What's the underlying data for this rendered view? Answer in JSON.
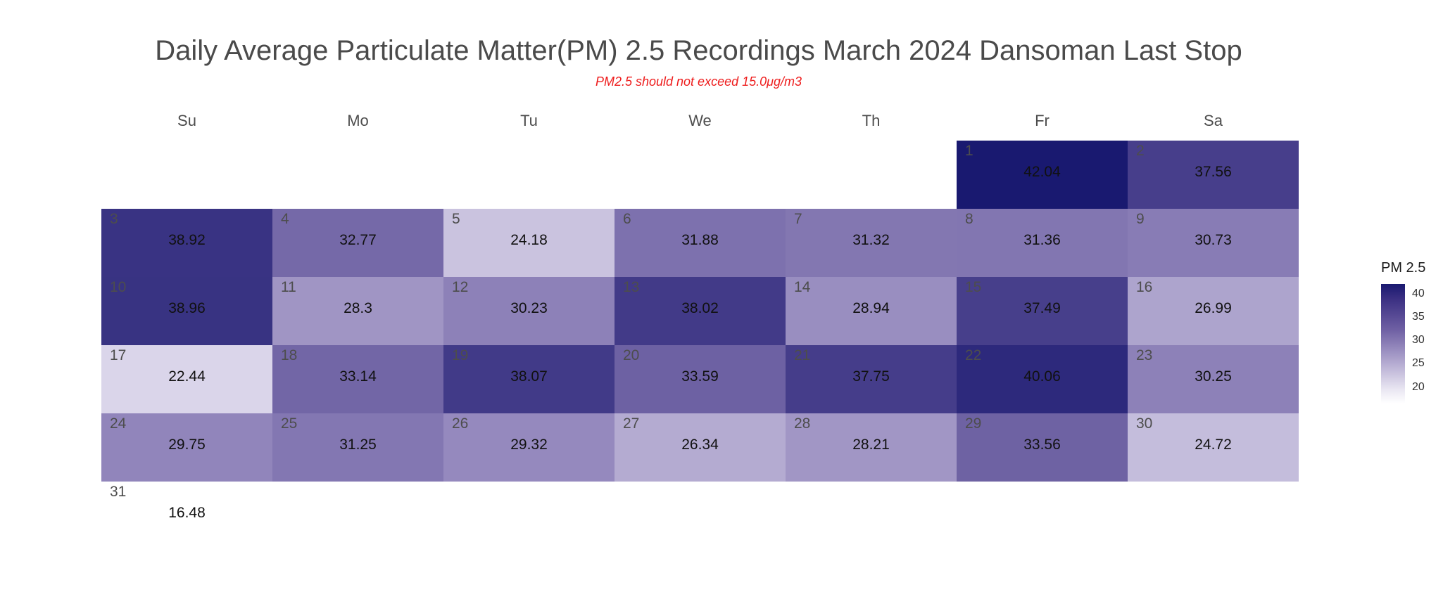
{
  "chart_data": {
    "type": "heatmap",
    "title": "Daily Average Particulate Matter(PM) 2.5 Recordings March 2024 Dansoman Last Stop",
    "subtitle": "PM2.5 should not exceed 15.0μg/m3",
    "weekdays": [
      "Su",
      "Mo",
      "Tu",
      "We",
      "Th",
      "Fr",
      "Sa"
    ],
    "first_weekday_index": 5,
    "days": [
      {
        "day": 1,
        "value": 42.04
      },
      {
        "day": 2,
        "value": 37.56
      },
      {
        "day": 3,
        "value": 38.92
      },
      {
        "day": 4,
        "value": 32.77
      },
      {
        "day": 5,
        "value": 24.18
      },
      {
        "day": 6,
        "value": 31.88
      },
      {
        "day": 7,
        "value": 31.32
      },
      {
        "day": 8,
        "value": 31.36
      },
      {
        "day": 9,
        "value": 30.73
      },
      {
        "day": 10,
        "value": 38.96
      },
      {
        "day": 11,
        "value": 28.3
      },
      {
        "day": 12,
        "value": 30.23
      },
      {
        "day": 13,
        "value": 38.02
      },
      {
        "day": 14,
        "value": 28.94
      },
      {
        "day": 15,
        "value": 37.49
      },
      {
        "day": 16,
        "value": 26.99
      },
      {
        "day": 17,
        "value": 22.44
      },
      {
        "day": 18,
        "value": 33.14
      },
      {
        "day": 19,
        "value": 38.07
      },
      {
        "day": 20,
        "value": 33.59
      },
      {
        "day": 21,
        "value": 37.75
      },
      {
        "day": 22,
        "value": 40.06
      },
      {
        "day": 23,
        "value": 30.25
      },
      {
        "day": 24,
        "value": 29.75
      },
      {
        "day": 25,
        "value": 31.25
      },
      {
        "day": 26,
        "value": 29.32
      },
      {
        "day": 27,
        "value": 26.34
      },
      {
        "day": 28,
        "value": 28.21
      },
      {
        "day": 29,
        "value": 33.56
      },
      {
        "day": 30,
        "value": 24.72
      },
      {
        "day": 31,
        "value": 16.48
      }
    ],
    "legend": {
      "title": "PM 2.5",
      "ticks": [
        20,
        25,
        30,
        35,
        40
      ],
      "range": [
        16.48,
        42.04
      ],
      "color_low": "#ffffff",
      "color_high": "#191970"
    }
  }
}
